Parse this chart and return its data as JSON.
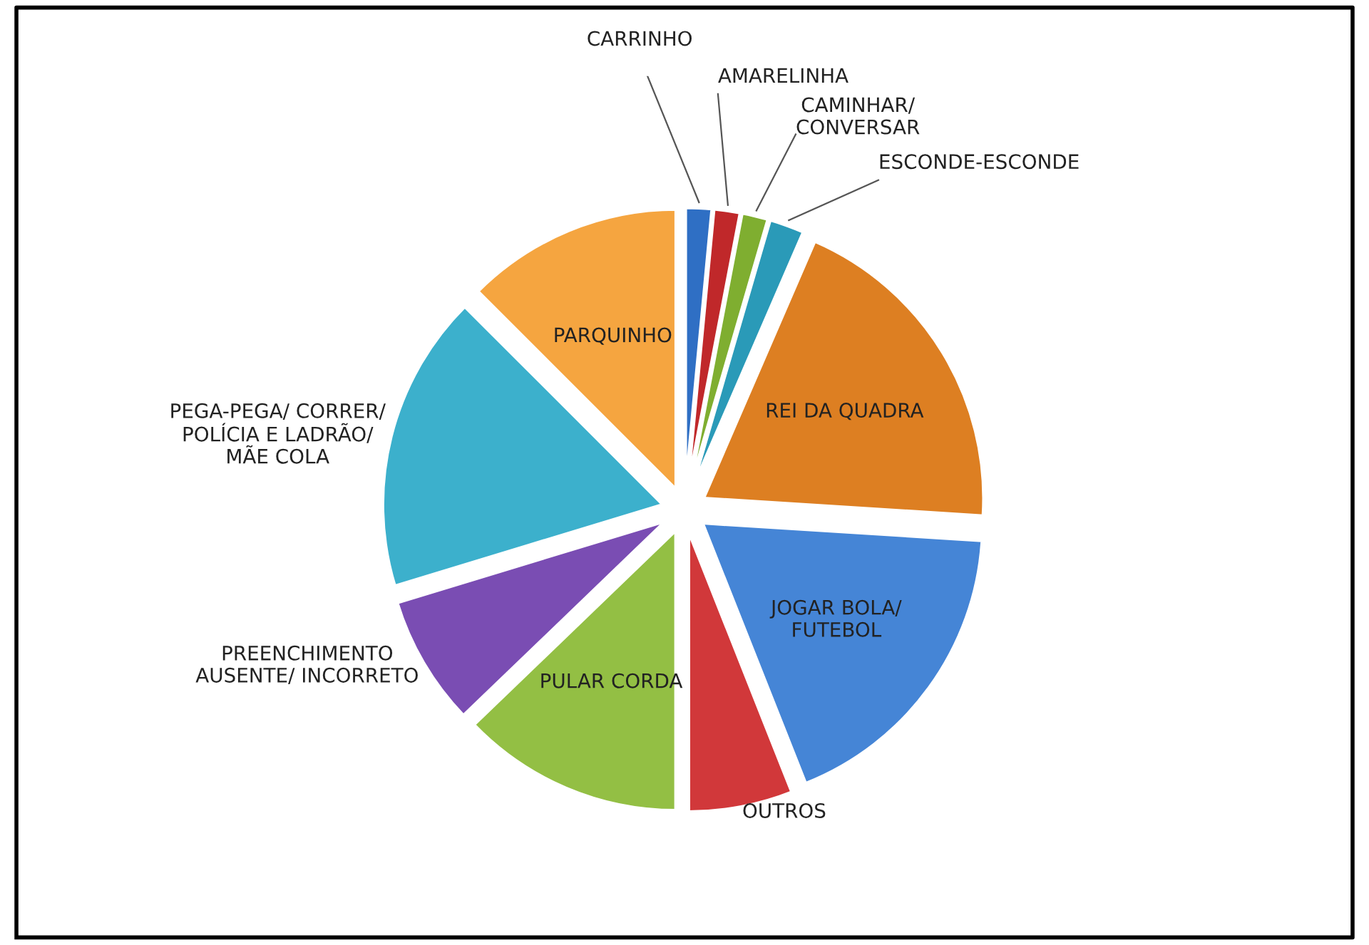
{
  "chart_data": {
    "type": "pie",
    "categories": [
      "CARRINHO",
      "AMARELINHA",
      "CAMINHAR/\nCONVERSAR",
      "ESCONDE-ESCONDE",
      "REI DA QUADRA",
      "JOGAR BOLA/\nFUTEBOL",
      "OUTROS",
      "PULAR CORDA",
      "PREENCHIMENTO\nAUSENTE/ INCORRETO",
      "PEGA-PEGA/ CORRER/\nPOLÍCIA E LADRÃO/\nMÃE COLA",
      "PARQUINHO"
    ],
    "values": [
      1.5,
      1.5,
      1.5,
      2,
      19.5,
      18,
      6,
      12.8,
      7.5,
      17.2,
      12.5
    ],
    "colors": [
      "#2f6fc4",
      "#c0282a",
      "#7fae30",
      "#2a9ab8",
      "#dd7f22",
      "#4585d6",
      "#d1383a",
      "#93bf44",
      "#7a4db3",
      "#3cb0cc",
      "#f5a540"
    ],
    "legend": false
  }
}
